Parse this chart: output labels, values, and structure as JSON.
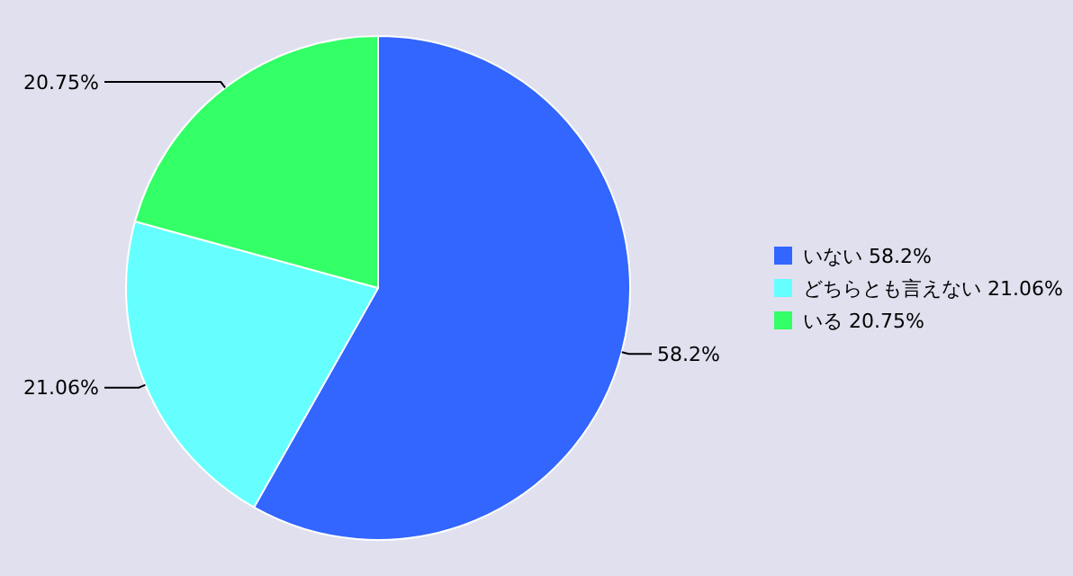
{
  "chart_data": {
    "type": "pie",
    "categories": [
      "いない",
      "どちらとも言えない",
      "いる"
    ],
    "values": [
      58.2,
      21.06,
      20.75
    ],
    "colors": [
      "#3366ff",
      "#66ffff",
      "#33ff66"
    ],
    "value_labels": [
      "58.2%",
      "21.06%",
      "20.75%"
    ],
    "legend": "right"
  }
}
